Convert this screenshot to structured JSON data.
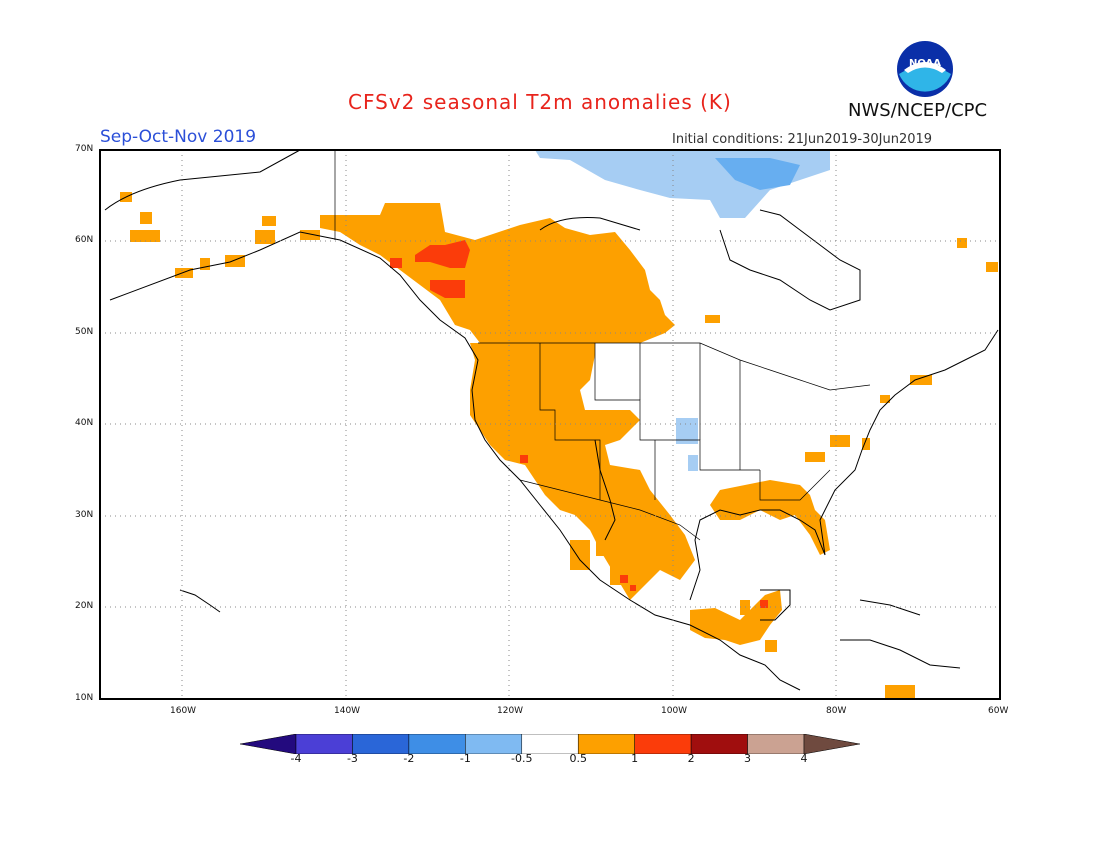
{
  "title": "CFSv2 seasonal T2m anomalies (K)",
  "season": "Sep-Oct-Nov 2019",
  "initial_conditions": "Initial conditions: 21Jun2019-30Jun2019",
  "agency": "NWS/NCEP/CPC",
  "logo_text": "NOAA",
  "map": {
    "lat_labels": [
      "70N",
      "60N",
      "50N",
      "40N",
      "30N",
      "20N",
      "10N"
    ],
    "lon_labels": [
      "160W",
      "140W",
      "120W",
      "100W",
      "80W",
      "60W"
    ],
    "colors": {
      "cold1": "#a6cdf3",
      "cold2": "#67aef0",
      "warm1": "#fda000",
      "warm2": "#fb3c0a"
    }
  },
  "colorbar": {
    "ticks": [
      "-4",
      "-3",
      "-2",
      "-1",
      "-0.5",
      "0.5",
      "1",
      "2",
      "3",
      "4"
    ],
    "colors": [
      "#230a7e",
      "#4b3fd6",
      "#2a66d8",
      "#3e8ee6",
      "#7fbaf2",
      "#ffffff",
      "#fda000",
      "#fb3c0a",
      "#a00e0e",
      "#cba292",
      "#6f4a3f"
    ]
  }
}
